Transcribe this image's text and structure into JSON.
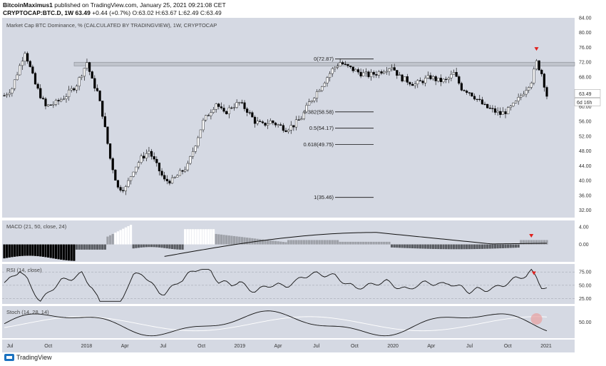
{
  "header": {
    "author": "BitcoinMaximus1",
    "published": "published on TradingView.com, January 25, 2021 09:21:08 CET",
    "symbol": "CRYPTOCAP:BTC.D, 1W",
    "last": "63.49",
    "change": "+0.44 (+0.7%)",
    "ohlc": "O:63.02 H:63.67 L:62.49 C:63.49"
  },
  "footer": {
    "brand": "TradingView"
  },
  "colors": {
    "bg": "#d5d9e3",
    "up": "#ffffff",
    "down": "#000000",
    "line": "#111111",
    "marker": "#e0201c"
  },
  "chart_data": [
    {
      "type": "candlestick",
      "title": "Market Cap BTC Dominance, % (CALCULATED BY TRADINGVIEW), 1W, CRYPTOCAP",
      "ylim": [
        30,
        84
      ],
      "yticks": [
        "84.00",
        "80.00",
        "76.00",
        "72.00",
        "68.00",
        "64.00",
        "60.00",
        "56.00",
        "52.00",
        "48.00",
        "44.00",
        "40.00",
        "36.00",
        "32.00"
      ],
      "xticks": [
        "Jul",
        "Oct",
        "2018",
        "Apr",
        "Jul",
        "Oct",
        "2019",
        "Apr",
        "Jul",
        "Oct",
        "2020",
        "Apr",
        "Jul",
        "Oct",
        "2021"
      ],
      "close_path": [
        [
          0,
          63
        ],
        [
          3,
          65
        ],
        [
          8,
          75
        ],
        [
          12,
          66
        ],
        [
          16,
          60
        ],
        [
          20,
          61
        ],
        [
          24,
          63
        ],
        [
          28,
          66
        ],
        [
          32,
          72
        ],
        [
          34,
          67
        ],
        [
          36,
          64
        ],
        [
          38,
          58
        ],
        [
          41,
          46
        ],
        [
          44,
          38
        ],
        [
          47,
          38
        ],
        [
          50,
          43
        ],
        [
          53,
          46
        ],
        [
          56,
          48
        ],
        [
          59,
          44
        ],
        [
          62,
          40
        ],
        [
          65,
          40
        ],
        [
          68,
          42
        ],
        [
          71,
          44
        ],
        [
          74,
          50
        ],
        [
          77,
          56
        ],
        [
          80,
          59
        ],
        [
          82,
          61
        ],
        [
          85,
          58
        ],
        [
          88,
          60
        ],
        [
          91,
          61
        ],
        [
          94,
          59
        ],
        [
          97,
          56
        ],
        [
          100,
          55
        ],
        [
          103,
          56
        ],
        [
          106,
          55
        ],
        [
          109,
          54
        ],
        [
          112,
          55
        ],
        [
          115,
          57
        ],
        [
          118,
          61
        ],
        [
          121,
          64
        ],
        [
          124,
          67
        ],
        [
          127,
          70
        ],
        [
          130,
          72
        ],
        [
          132,
          71
        ],
        [
          135,
          70
        ],
        [
          138,
          69
        ],
        [
          141,
          68.5
        ],
        [
          144,
          69
        ],
        [
          147,
          70
        ],
        [
          150,
          71
        ],
        [
          153,
          68
        ],
        [
          156,
          67
        ],
        [
          159,
          66
        ],
        [
          162,
          67
        ],
        [
          165,
          68
        ],
        [
          168,
          67
        ],
        [
          171,
          67
        ],
        [
          174,
          69
        ],
        [
          177,
          65
        ],
        [
          180,
          64
        ],
        [
          183,
          62
        ],
        [
          186,
          60
        ],
        [
          189,
          59
        ],
        [
          192,
          58
        ],
        [
          195,
          59
        ],
        [
          198,
          61
        ],
        [
          201,
          64
        ],
        [
          204,
          67
        ],
        [
          206,
          72
        ],
        [
          208,
          69
        ],
        [
          210,
          63
        ]
      ],
      "resistance_band": [
        71,
        72
      ],
      "fib_levels": [
        {
          "label": "0(72.87)",
          "value": 72.87
        },
        {
          "label": "0.382(58.58)",
          "value": 58.58
        },
        {
          "label": "0.5(54.17)",
          "value": 54.17
        },
        {
          "label": "0.618(49.75)",
          "value": 49.75
        },
        {
          "label": "1(35.46)",
          "value": 35.46
        }
      ],
      "last_label": "63.49",
      "countdown": "6d 16h"
    },
    {
      "type": "histogram_line",
      "title": "MACD (21, 50, close, 24)",
      "yticks": [
        "4.00",
        "0.00"
      ],
      "ylim": [
        -4,
        5.5
      ]
    },
    {
      "type": "line",
      "title": "RSI (14, close)",
      "yticks": [
        "75.00",
        "50.00",
        "25.00"
      ],
      "ylim": [
        15,
        90
      ]
    },
    {
      "type": "line",
      "title": "Stoch (14, 28, 14)",
      "yticks": [
        "50.00"
      ],
      "ylim": [
        0,
        100
      ]
    }
  ]
}
